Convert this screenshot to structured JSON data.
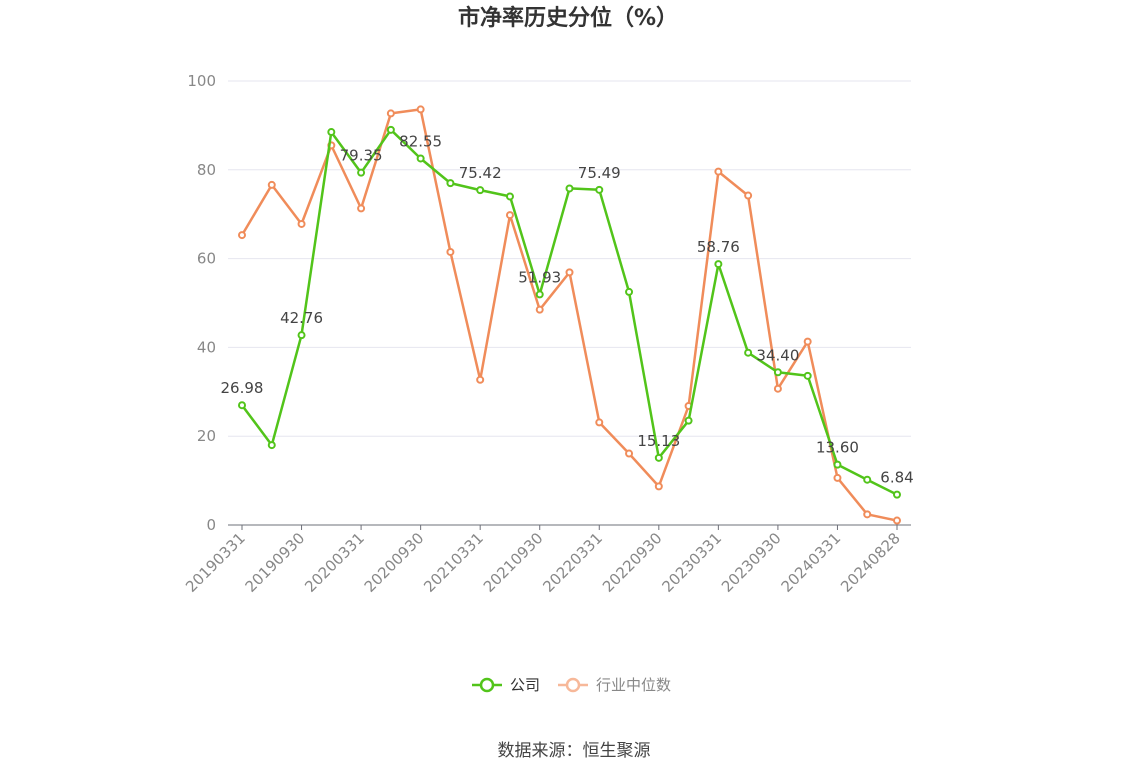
{
  "chart_data": {
    "type": "line",
    "title": "市净率历史分位（%）",
    "source": "数据来源：恒生聚源",
    "ylim": [
      0,
      100
    ],
    "y_ticks": [
      "0",
      "20",
      "40",
      "60",
      "80",
      "100"
    ],
    "x_tick_labels": [
      "20190331",
      "20190930",
      "20200331",
      "20200930",
      "20210331",
      "20210930",
      "20220331",
      "20220930",
      "20230331",
      "20230930",
      "20240331",
      "20240828"
    ],
    "x_tick_indices": [
      0,
      2,
      4,
      6,
      8,
      10,
      12,
      14,
      16,
      18,
      20,
      22
    ],
    "grid": true,
    "legend_position": "bottom",
    "series": [
      {
        "name": "公司",
        "color": "#52c41a",
        "values": [
          26.98,
          18.0,
          42.76,
          88.5,
          79.35,
          89.0,
          82.55,
          77.0,
          75.42,
          74.0,
          51.93,
          75.8,
          75.49,
          52.5,
          15.13,
          23.5,
          58.76,
          38.8,
          34.4,
          33.6,
          13.6,
          10.2,
          6.84
        ],
        "labels": {
          "0": "26.98",
          "2": "42.76",
          "4": "79.35",
          "6": "82.55",
          "8": "75.42",
          "10": "51.93",
          "12": "75.49",
          "14": "15.13",
          "16": "58.76",
          "18": "34.40",
          "20": "13.60",
          "22": "6.84"
        }
      },
      {
        "name": "行业中位数",
        "color": "#f08c5a",
        "values": [
          65.3,
          76.6,
          67.8,
          85.5,
          71.3,
          92.7,
          93.6,
          61.5,
          32.7,
          69.8,
          48.5,
          56.9,
          23.1,
          16.1,
          8.7,
          26.8,
          79.6,
          74.2,
          30.7,
          41.3,
          10.6,
          2.4,
          1.0
        ]
      }
    ]
  }
}
